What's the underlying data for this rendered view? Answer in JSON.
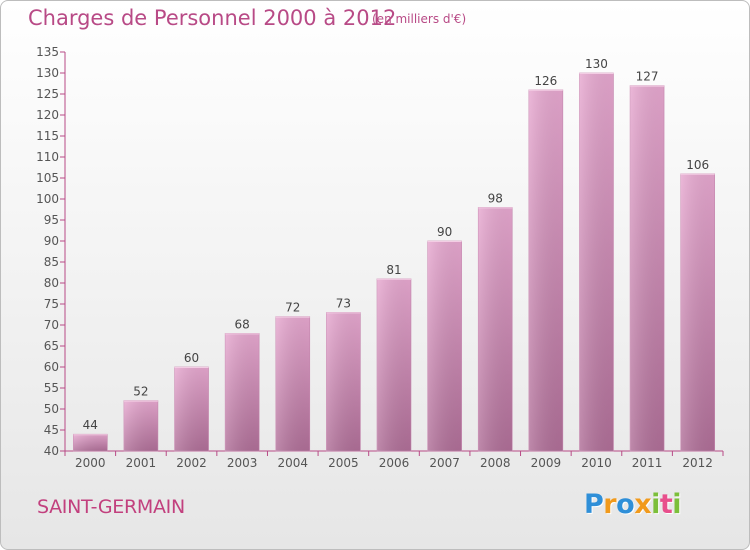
{
  "header": {
    "title": "Charges de Personnel 2000 à 2012",
    "subtitle": "(en milliers d'€)"
  },
  "footer": {
    "commune": "SAINT-GERMAIN",
    "logo_letters": [
      {
        "ch": "P",
        "color": "#2f8fd8"
      },
      {
        "ch": "r",
        "color": "#f19a1c"
      },
      {
        "ch": "o",
        "color": "#2f8fd8"
      },
      {
        "ch": "x",
        "color": "#f19a1c"
      },
      {
        "ch": "i",
        "color": "#7cbf3a"
      },
      {
        "ch": "t",
        "color": "#e84f8c"
      },
      {
        "ch": "i",
        "color": "#7cbf3a"
      }
    ]
  },
  "chart_data": {
    "type": "bar",
    "categories": [
      "2000",
      "2001",
      "2002",
      "2003",
      "2004",
      "2005",
      "2006",
      "2007",
      "2008",
      "2009",
      "2010",
      "2011",
      "2012"
    ],
    "values": [
      44,
      52,
      60,
      68,
      72,
      73,
      81,
      90,
      98,
      126,
      130,
      127,
      106
    ],
    "ylim": [
      40,
      135
    ],
    "yticks": [
      40,
      45,
      50,
      55,
      60,
      65,
      70,
      75,
      80,
      85,
      90,
      95,
      100,
      105,
      110,
      115,
      120,
      125,
      130,
      135
    ],
    "grid": false,
    "bar_color": "#d98fbd",
    "bar_color_dark": "#b3739c",
    "axis_color": "#b84a86"
  }
}
